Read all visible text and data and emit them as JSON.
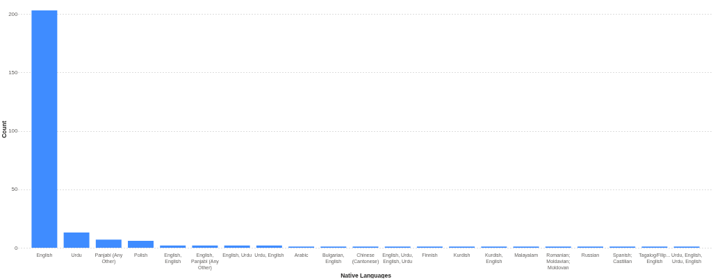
{
  "chart_data": {
    "type": "bar",
    "xlabel": "Native Languages",
    "ylabel": "Count",
    "categories": [
      "English",
      "Urdu",
      "Panjabi (Any Other)",
      "Polish",
      "English, English",
      "English, Panjabi (Any Other)",
      "English, Urdu",
      "Urdu, English",
      "Arabic",
      "Bulgarian, English",
      "Chinese (Cantonese)",
      "English, Urdu, English, Urdu",
      "Finnish",
      "Kurdish",
      "Kurdish, English",
      "Malayalam",
      "Romanian; Moldavian; Moldovan",
      "Russian",
      "Spanish; Castilian",
      "Tagalog/Filip... English",
      "Urdu, English, Urdu, English"
    ],
    "values": [
      203,
      13,
      7,
      6,
      2,
      2,
      2,
      2,
      1,
      1,
      1,
      1,
      1,
      1,
      1,
      1,
      1,
      1,
      1,
      1,
      1
    ],
    "color": "#3f8cff",
    "ylim": [
      0,
      203
    ],
    "yticks": [
      0,
      50,
      100,
      150,
      200
    ],
    "grid": "y"
  }
}
